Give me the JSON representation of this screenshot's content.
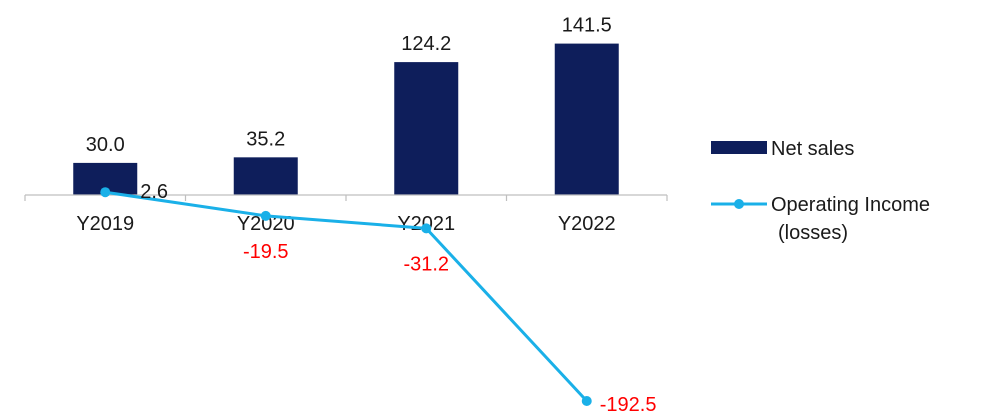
{
  "chart_data": {
    "type": "bar",
    "categories": [
      "Y2019",
      "Y2020",
      "Y2021",
      "Y2022"
    ],
    "series": [
      {
        "name": "Net sales",
        "type": "bar",
        "values": [
          30.0,
          35.2,
          124.2,
          141.5
        ],
        "labels": [
          "30.0",
          "35.2",
          "124.2",
          "141.5"
        ],
        "color": "#0e1e5b",
        "label_color": "#1a1a1a"
      },
      {
        "name": "Operating Income (losses)",
        "legend_lines": [
          "Operating Income",
          "(losses)"
        ],
        "type": "line",
        "values": [
          2.6,
          -19.5,
          -31.2,
          -192.5
        ],
        "labels": [
          "2.6",
          "-19.5",
          "-31.2",
          "-192.5"
        ],
        "color": "#1ab0e8",
        "label_colors": [
          "#1a1a1a",
          "#ff0000",
          "#ff0000",
          "#ff0000"
        ]
      }
    ],
    "legend_position": "right",
    "grid": false
  }
}
